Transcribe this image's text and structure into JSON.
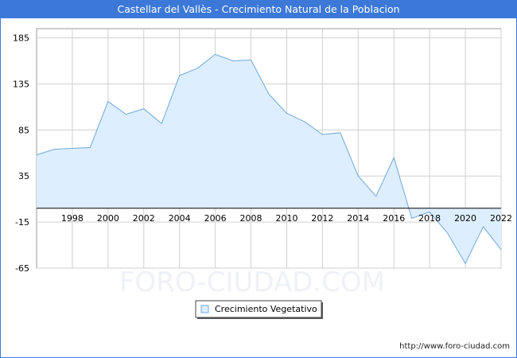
{
  "title": "Castellar del Vallès - Crecimiento Natural de la Poblacion",
  "watermark": "FORO-CIUDAD.COM",
  "footer_url": "http://www.foro-ciudad.com",
  "colors": {
    "title_bg": "#3c78d8",
    "line": "#6fa8dc",
    "fill": "#ddeeff",
    "grid": "#d0d0d0",
    "watermark": "#eef1f6"
  },
  "chart_data": {
    "type": "area",
    "x": [
      1996,
      1997,
      1998,
      1999,
      2000,
      2001,
      2002,
      2003,
      2004,
      2005,
      2006,
      2007,
      2008,
      2009,
      2010,
      2011,
      2012,
      2013,
      2014,
      2015,
      2016,
      2017,
      2018,
      2019,
      2020,
      2021,
      2022
    ],
    "series": [
      {
        "name": "Crecimiento Vegetativo",
        "values": [
          58,
          64,
          65,
          66,
          116,
          102,
          108,
          92,
          144,
          152,
          167,
          160,
          161,
          124,
          103,
          94,
          80,
          82,
          35,
          13,
          55,
          -11,
          -4,
          -27,
          -60,
          -20,
          -45
        ]
      }
    ],
    "xlim": [
      1996,
      2022
    ],
    "ylim": [
      -65,
      195
    ],
    "yticks": [
      185,
      135,
      85,
      35,
      -15,
      -65
    ],
    "xticks": [
      1998,
      2000,
      2002,
      2004,
      2006,
      2008,
      2010,
      2012,
      2014,
      2016,
      2018,
      2020,
      2022
    ],
    "grid": true,
    "legend": "bottom-center"
  }
}
